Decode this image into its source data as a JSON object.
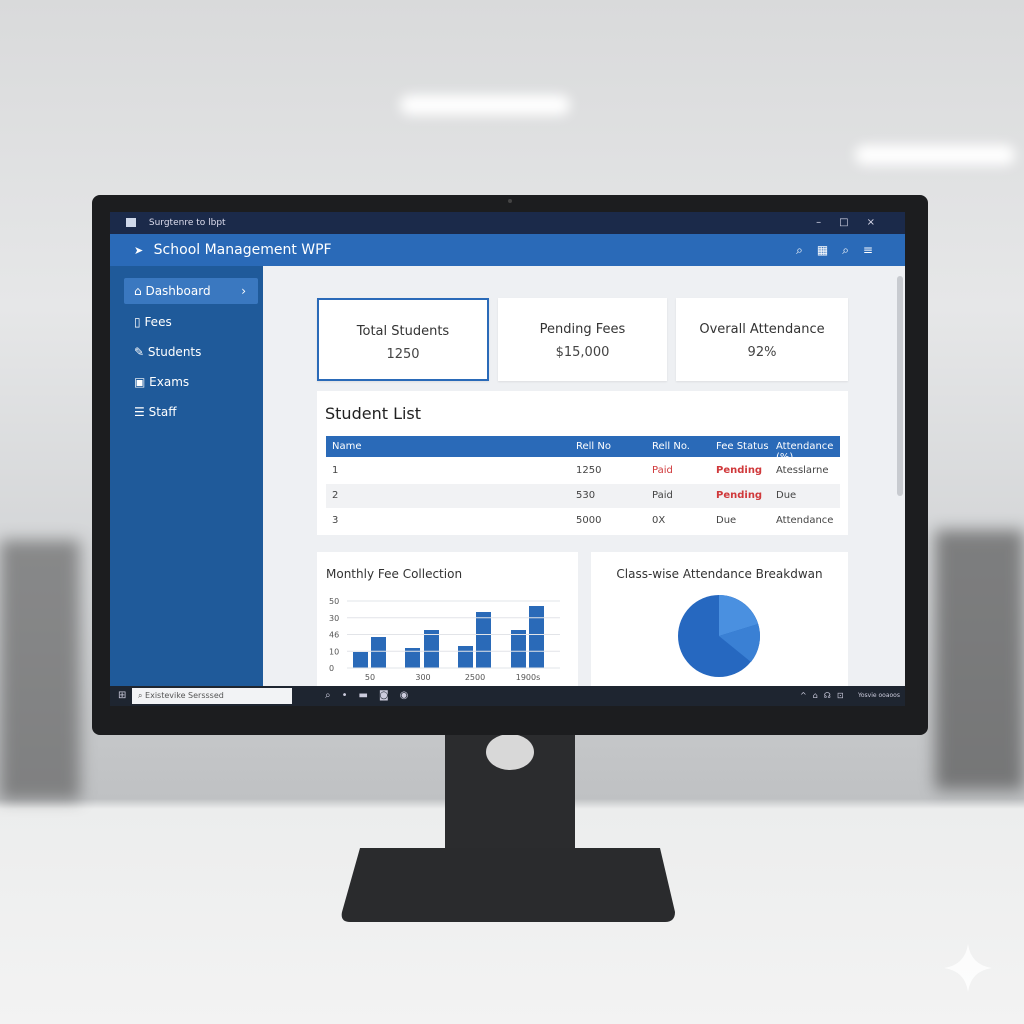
{
  "window": {
    "caption": "Surgtenre to lbpt",
    "app_title": "School Management WPF"
  },
  "nav": [
    "Dashboard",
    "Fees",
    "Students",
    "Exams",
    "Staff"
  ],
  "cards": [
    {
      "label": "Total Students",
      "value": "1250"
    },
    {
      "label": "Pending Fees",
      "value": "$15,000"
    },
    {
      "label": "Overall Attendance",
      "value": "92%"
    }
  ],
  "student_list": {
    "title": "Student List",
    "columns": [
      "Name",
      "Rell No",
      "Rell No.",
      "Fee Status",
      "Attendance (%)"
    ],
    "rows": [
      [
        "1",
        "1250",
        "Paid",
        "Pending",
        "Atesslarne"
      ],
      [
        "2",
        "530",
        "Paid",
        "Pending",
        "Due"
      ],
      [
        "3",
        "5000",
        "0X",
        "Due",
        "Attendance"
      ]
    ]
  },
  "fee_chart": {
    "title": "Monthly Fee Collection",
    "y_labels": [
      "50",
      "30",
      "46",
      "10",
      "0"
    ],
    "x_labels": [
      "50",
      "300",
      "2500",
      "1900s"
    ]
  },
  "attendance_chart": {
    "title": "Class-wise Attendance Breakdwan"
  },
  "taskbar": {
    "search": "Existevike Sersssed",
    "tray": "Yosvie ooaoos"
  }
}
